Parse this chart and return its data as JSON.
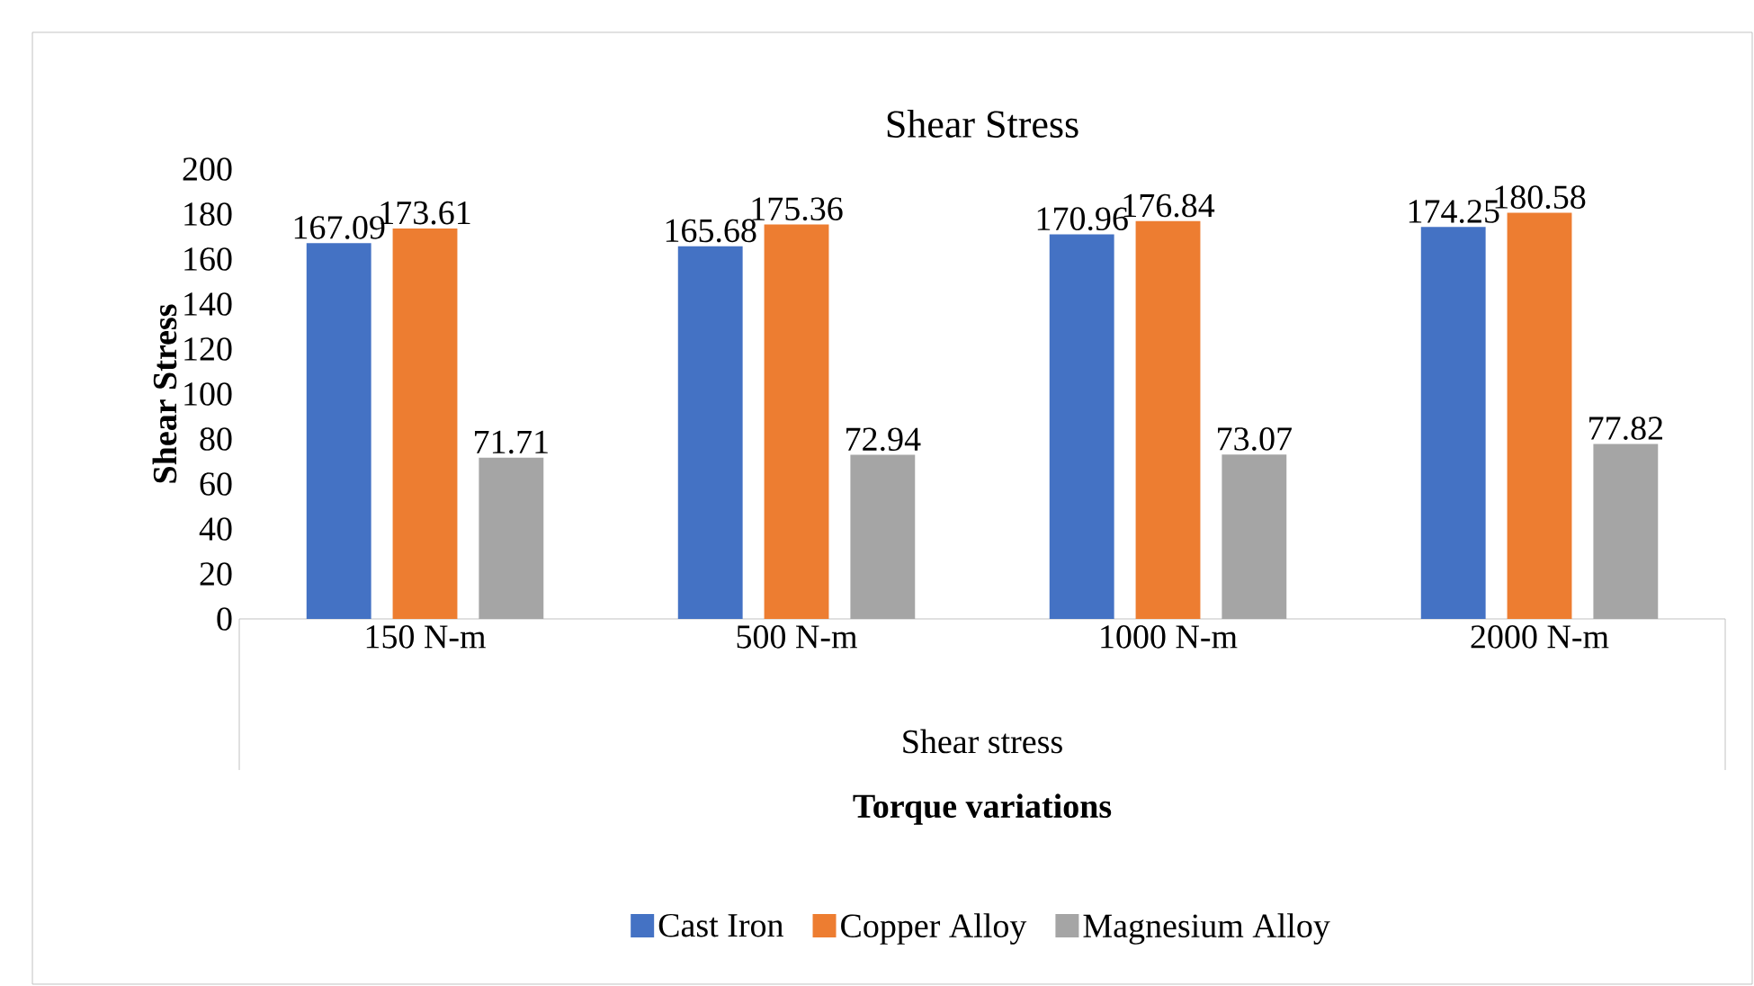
{
  "chart_data": {
    "type": "bar",
    "title": "Shear Stress",
    "xlabel": "Torque variations",
    "ylabel": "Shear Stress",
    "annotations": [
      "Shear stress"
    ],
    "categories": [
      "150 N-m",
      "500 N-m",
      "1000 N-m",
      "2000 N-m"
    ],
    "series": [
      {
        "name": "Cast Iron",
        "color": "#4472c4",
        "values": [
          167.09,
          165.68,
          170.96,
          174.25
        ]
      },
      {
        "name": "Copper Alloy",
        "color": "#ed7d31",
        "values": [
          173.61,
          175.36,
          176.84,
          180.58
        ]
      },
      {
        "name": "Magnesium Alloy",
        "color": "#a5a5a5",
        "values": [
          71.71,
          72.94,
          73.07,
          77.82
        ]
      }
    ],
    "ylim": [
      0,
      200
    ],
    "yticks": [
      0,
      20,
      40,
      60,
      80,
      100,
      120,
      140,
      160,
      180,
      200
    ],
    "data_labels": true,
    "legend": "bottom"
  }
}
